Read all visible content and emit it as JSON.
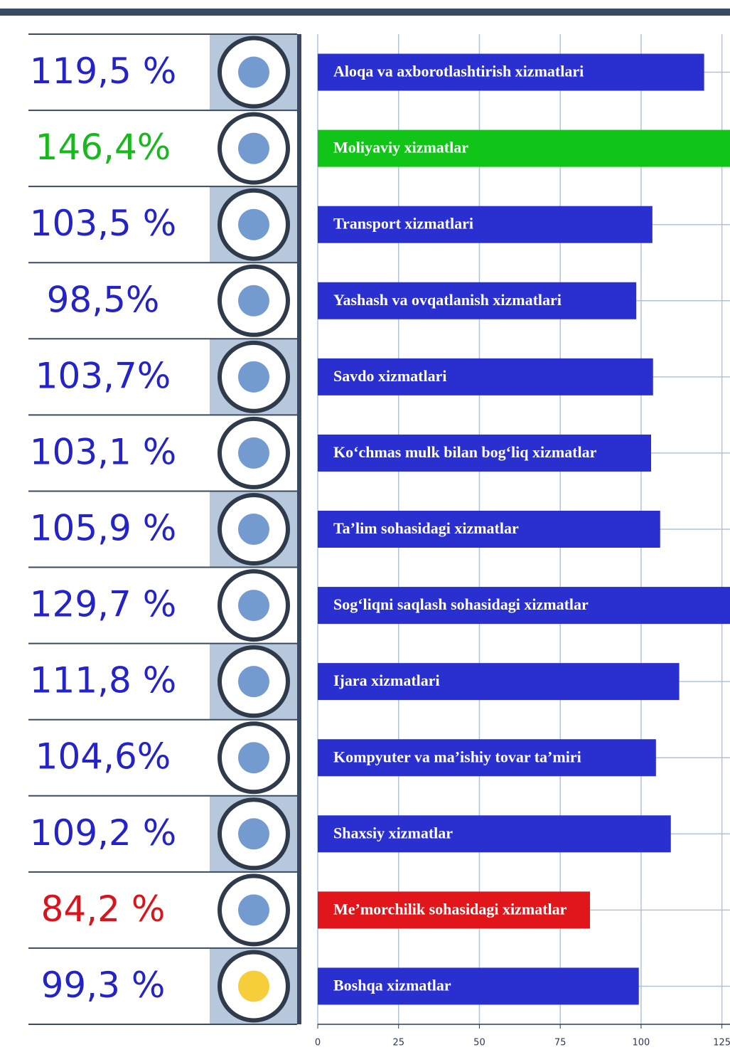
{
  "chart_data": {
    "type": "bar",
    "orientation": "horizontal",
    "categories": [
      "Aloqa va axborotlashtirish xizmatlari",
      "Moliyaviy xizmatlar",
      "Transport xizmatlari",
      "Yashash va ovqatlanish xizmatlari",
      "Savdo xizmatlari",
      "Ko‘chmas mulk bilan bog‘liq xizmatlar",
      "Ta’lim sohasidagi xizmatlar",
      "Sog‘liqni saqlash sohasidagi xizmatlar",
      "Ijara xizmatlari",
      "Kompyuter va ma’ishiy tovar ta’miri",
      "Shaxsiy xizmatlar",
      "Me’morchilik sohasidagi xizmatlar",
      "Boshqa xizmatlar"
    ],
    "values": [
      119.5,
      146.4,
      103.5,
      98.5,
      103.7,
      103.1,
      105.9,
      129.7,
      111.8,
      104.6,
      109.2,
      84.2,
      99.3
    ],
    "value_labels": [
      "119,5 %",
      "146,4%",
      "103,5 %",
      "98,5%",
      "103,7%",
      "103,1 %",
      "105,9 %",
      "129,7 %",
      "111,8 %",
      "104,6%",
      "109,2 %",
      "84,2 %",
      "99,3 %"
    ],
    "colors": [
      "#2a2fd0",
      "#10c418",
      "#2a2fd0",
      "#2a2fd0",
      "#2a2fd0",
      "#2a2fd0",
      "#2a2fd0",
      "#2a2fd0",
      "#2a2fd0",
      "#2a2fd0",
      "#2a2fd0",
      "#e0161a",
      "#2a2fd0"
    ],
    "label_colors": [
      "#2323c8",
      "#19b81f",
      "#2323c8",
      "#2323c8",
      "#2323c8",
      "#2323c8",
      "#2323c8",
      "#2323c8",
      "#2323c8",
      "#2323c8",
      "#2323c8",
      "#d8141c",
      "#2323c8"
    ],
    "xlim": [
      0,
      127.5
    ],
    "xticks": [
      0,
      25,
      50,
      75,
      100,
      125
    ],
    "grid": true
  }
}
